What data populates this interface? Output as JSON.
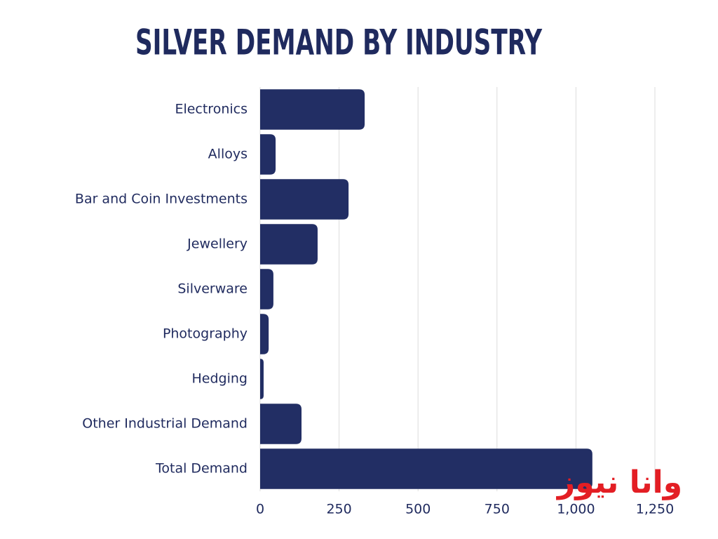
{
  "chart_data": {
    "type": "bar",
    "orientation": "horizontal",
    "title": "SILVER DEMAND BY INDUSTRY",
    "categories": [
      "Electronics",
      "Alloys",
      "Bar and Coin Investments",
      "Jewellery",
      "Silverware",
      "Photography",
      "Hedging",
      "Other Industrial Demand",
      "Total Demand"
    ],
    "values": [
      331,
      49,
      280,
      182,
      42,
      27,
      11,
      131,
      1052
    ],
    "color": "#222e64",
    "xlim": [
      0,
      1250
    ],
    "xticks": [
      0,
      250,
      500,
      750,
      {
        "value": 1000,
        "label": "1,000"
      },
      {
        "value": 1250,
        "label": "1,250"
      }
    ],
    "grid": true,
    "watermark": "وانا نیوز"
  }
}
